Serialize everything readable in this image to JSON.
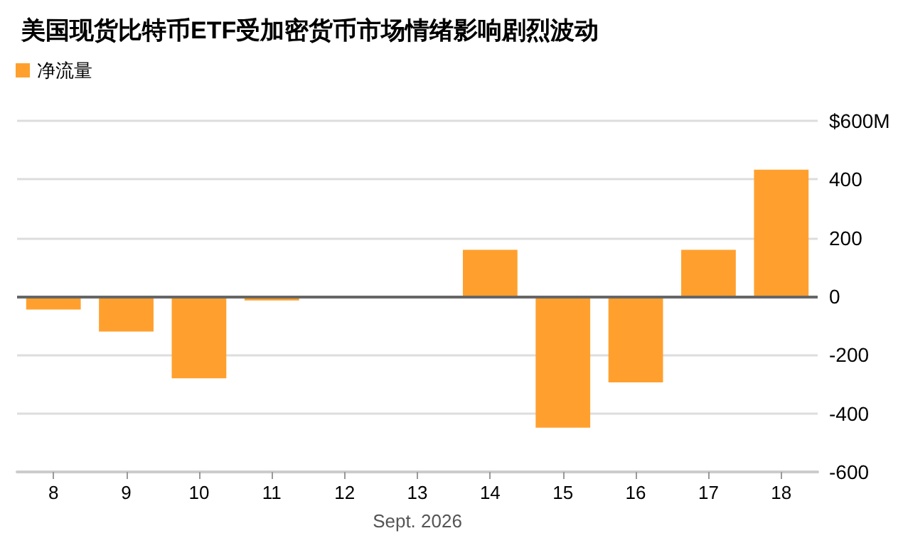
{
  "chart_data": {
    "type": "bar",
    "title": "美国现货比特币ETF受加密货币市场情绪影响剧烈波动",
    "xlabel": "Sept. 2026",
    "categories": [
      "8",
      "9",
      "10",
      "11",
      "12",
      "13",
      "14",
      "15",
      "16",
      "17",
      "18"
    ],
    "series": [
      {
        "name": "净流量",
        "color": "#ffa02e",
        "values": [
          -45,
          -120,
          -280,
          -14,
          null,
          null,
          159,
          -449,
          -294,
          159,
          433
        ]
      }
    ],
    "ylim": [
      -600,
      600
    ],
    "yticks": [
      -600,
      -400,
      -200,
      0,
      200,
      400,
      {
        "value": 600,
        "label": "$600M"
      }
    ],
    "ref_lines": [
      {
        "axis": "y",
        "value": 0,
        "color": "#666666"
      }
    ],
    "grid": "y",
    "legend": "top left"
  }
}
